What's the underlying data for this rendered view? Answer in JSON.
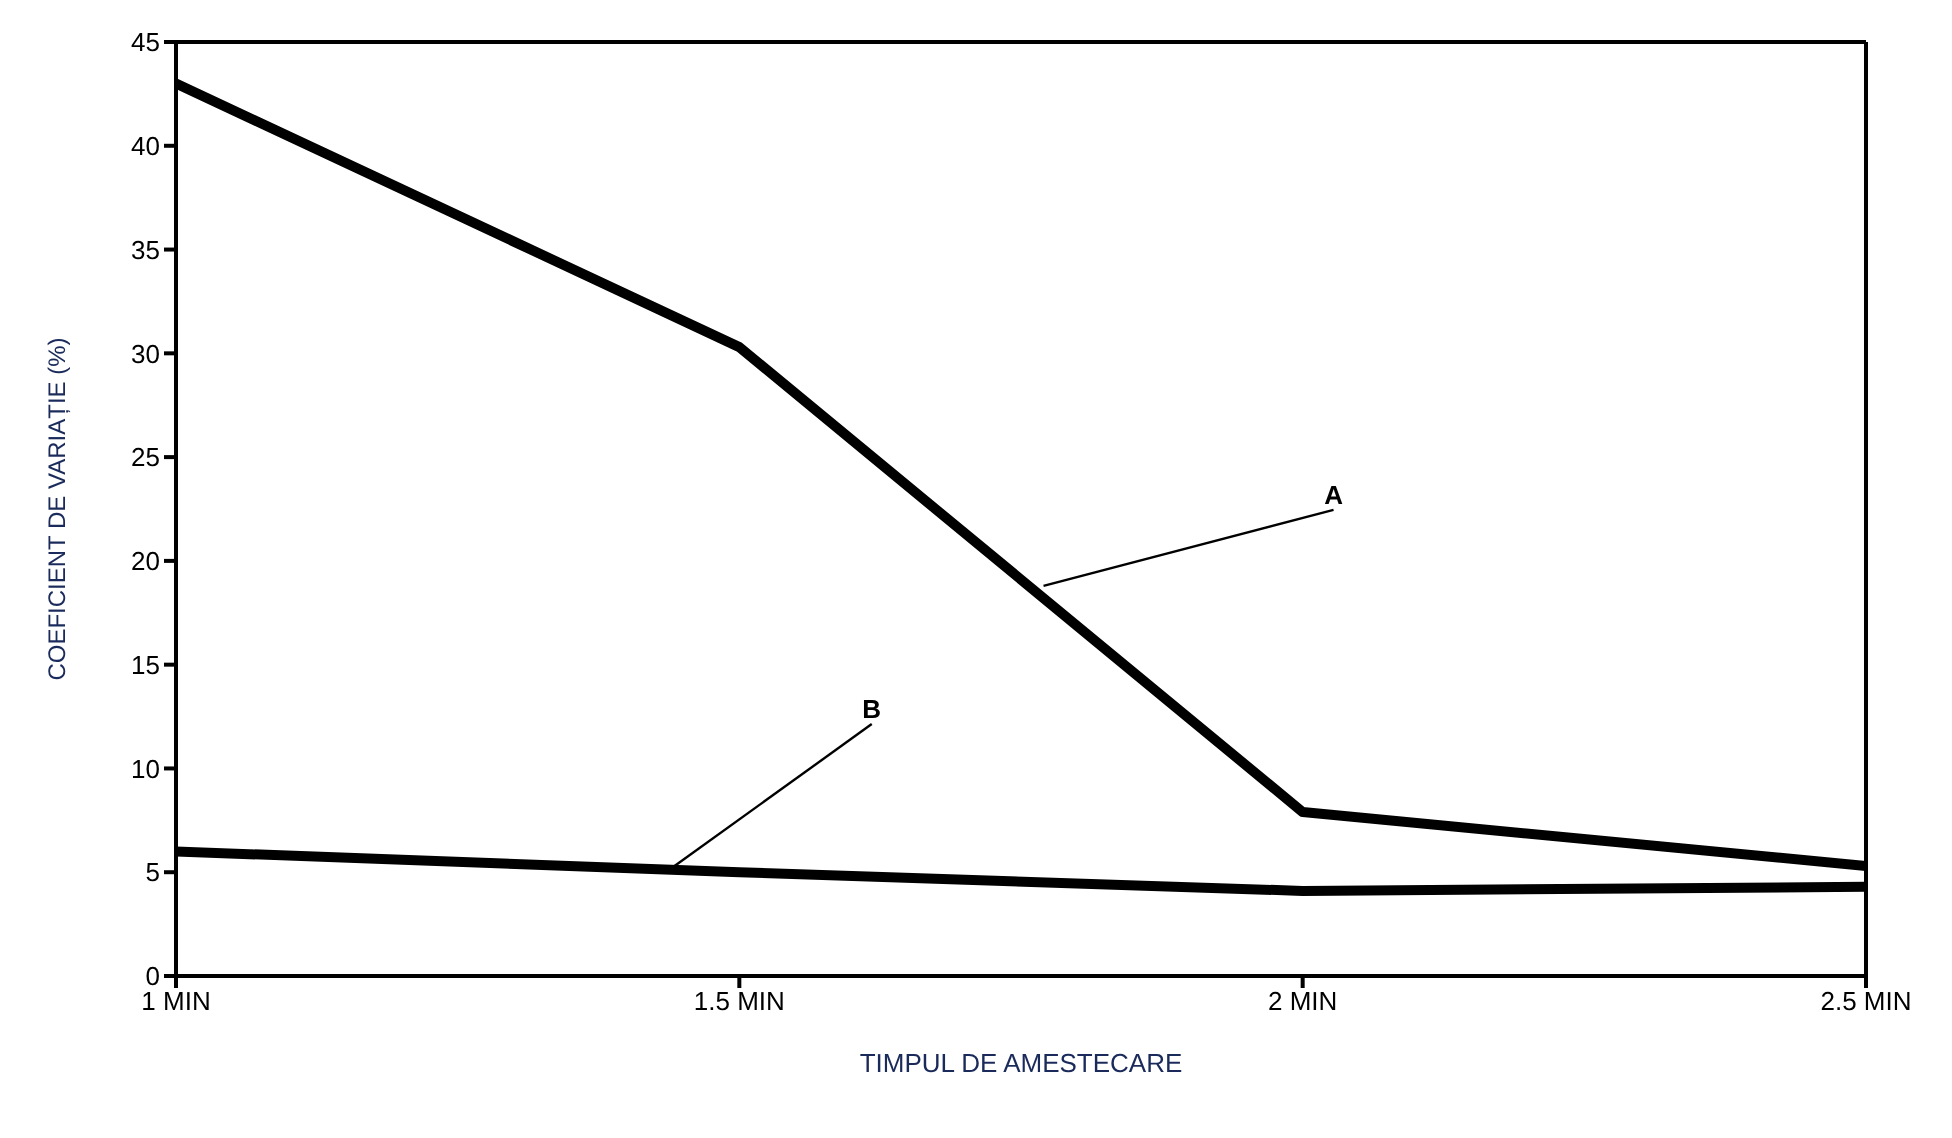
{
  "chart_data": {
    "type": "line",
    "xlabel": "TIMPUL DE AMESTECARE",
    "ylabel": "COEFICIENT DE VARIAȚIE (%)",
    "x": [
      1,
      1.5,
      2,
      2.5
    ],
    "series": [
      {
        "color": "#000000",
        "values": [
          43.0,
          30.3,
          7.9,
          5.3
        ]
      },
      {
        "color": "#000000",
        "values": [
          6.0,
          5.0,
          4.1,
          4.3
        ]
      }
    ],
    "annotations": [
      {
        "text": "A",
        "x": 1.77,
        "y": 18.8
      },
      {
        "text": "B",
        "x": 1.44,
        "y": 5.2
      }
    ],
    "xlim": [
      1,
      2.5
    ],
    "xticks": [
      {
        "value": 1,
        "label": "1 MIN"
      },
      {
        "value": 1.5,
        "label": "1.5 MIN"
      },
      {
        "value": 2,
        "label": "2 MIN"
      },
      {
        "value": 2.5,
        "label": "2.5 MIN"
      }
    ],
    "ylim": [
      0,
      45
    ],
    "yticks": [
      0,
      5,
      10,
      15,
      20,
      25,
      30,
      35,
      40,
      45
    ],
    "grid": false,
    "marker": "none",
    "line_style": "solid"
  }
}
